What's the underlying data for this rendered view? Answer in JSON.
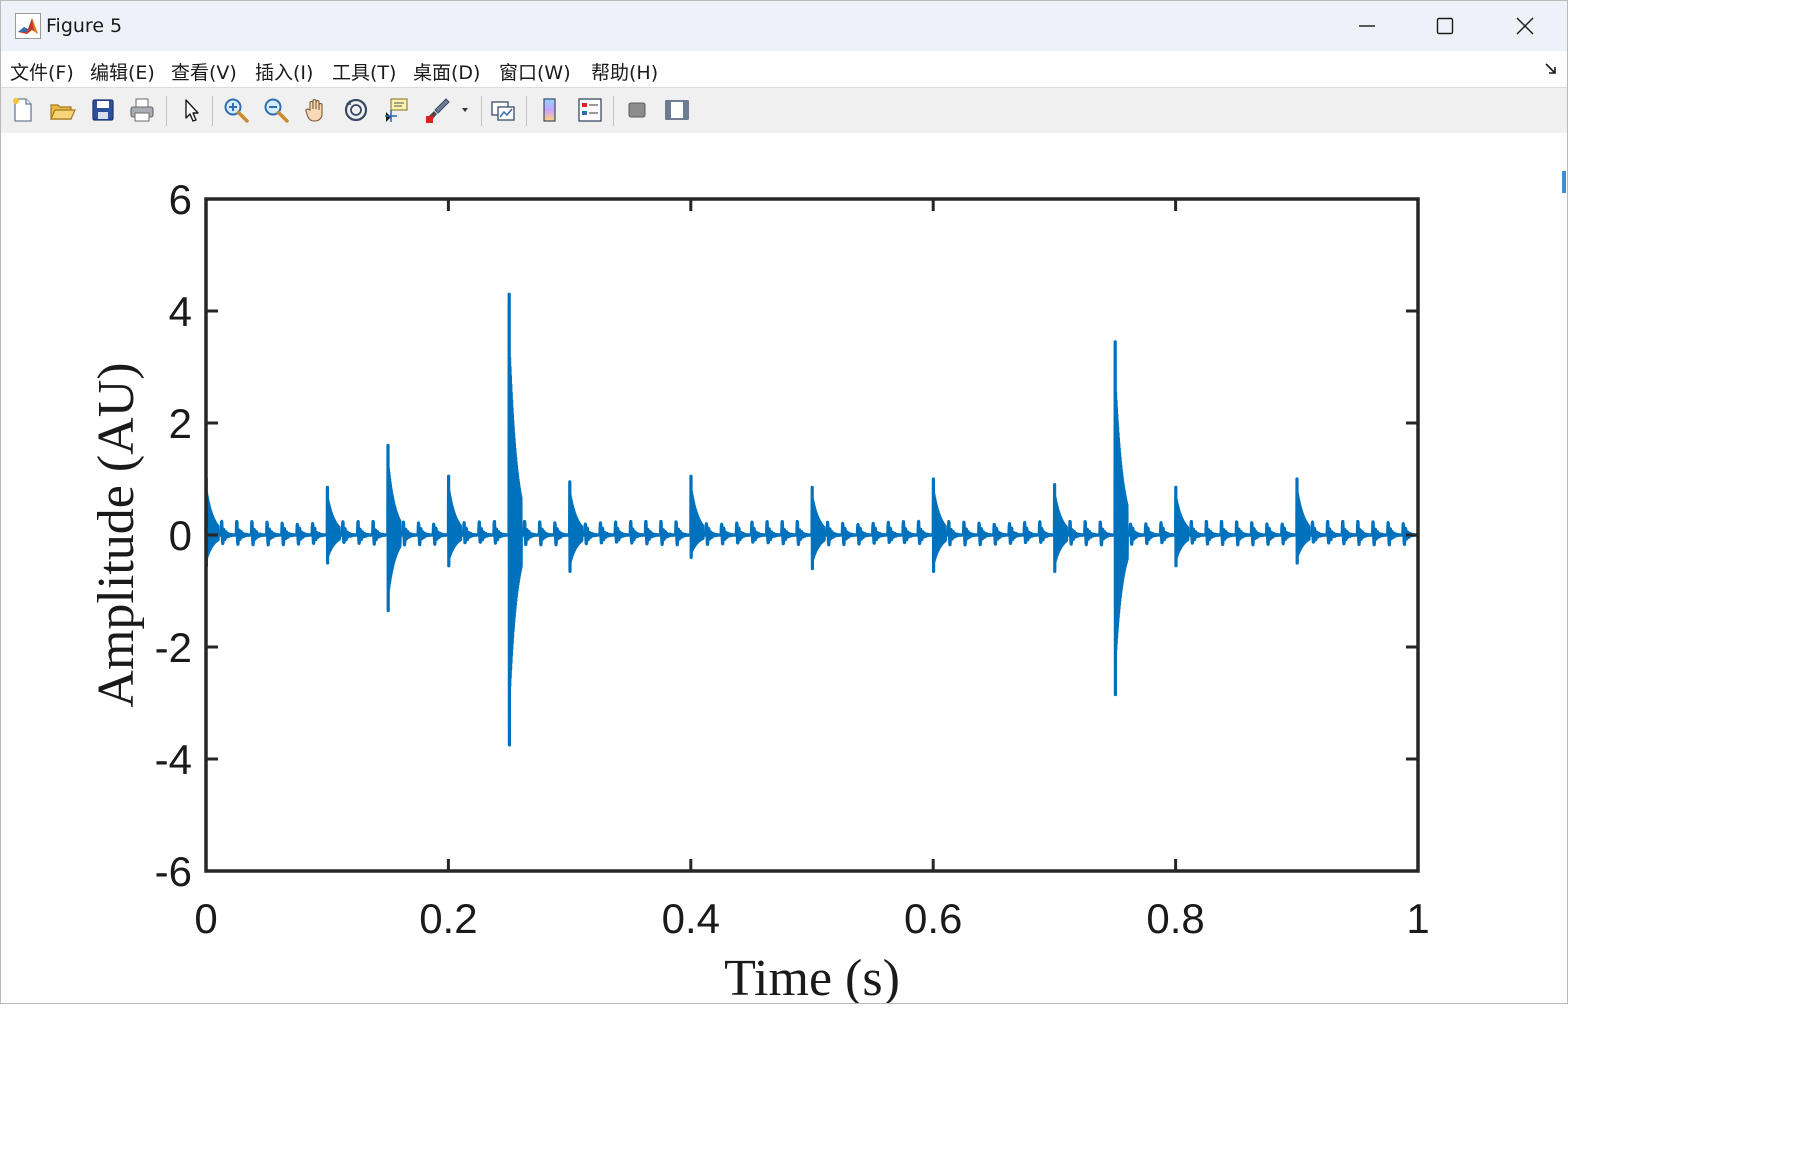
{
  "window": {
    "title": "Figure 5",
    "icon": "matlab-icon",
    "controls": [
      "minimize-icon",
      "maximize-icon",
      "close-icon"
    ]
  },
  "menu": {
    "items": [
      "文件(F)",
      "编辑(E)",
      "查看(V)",
      "插入(I)",
      "工具(T)",
      "桌面(D)",
      "窗口(W)",
      "帮助(H)"
    ]
  },
  "toolbar": {
    "buttons": [
      "new-figure-icon",
      "open-file-icon",
      "save-icon",
      "print-icon",
      "pointer-icon",
      "zoom-in-icon",
      "zoom-out-icon",
      "pan-icon",
      "rotate-3d-icon",
      "data-cursor-icon",
      "brush-icon",
      "link-plot-icon",
      "colorbar-icon",
      "legend-icon",
      "hide-plot-tools-icon",
      "show-plot-tools-icon"
    ]
  },
  "colors": {
    "series": "#0072BD",
    "axes": "#262626",
    "background": "#ffffff"
  },
  "chart_data": {
    "type": "line",
    "title": "",
    "xlabel": "Time (s)",
    "ylabel": "Amplitude (AU)",
    "xlim": [
      0,
      1
    ],
    "ylim": [
      -6,
      6
    ],
    "xticks": [
      0,
      0.2,
      0.4,
      0.6,
      0.8,
      1
    ],
    "xtick_labels": [
      "0",
      "0.2",
      "0.4",
      "0.6",
      "0.8",
      "1"
    ],
    "yticks": [
      -6,
      -4,
      -2,
      0,
      2,
      4,
      6
    ],
    "ytick_labels": [
      "-6",
      "-4",
      "-2",
      "0",
      "2",
      "4",
      "6"
    ],
    "grid": false,
    "box": true,
    "series": [
      {
        "color": "#0072BD",
        "baseline_oscillation": {
          "period_s": 0.0125,
          "peak_max": 0.3,
          "peak_min": -0.3
        },
        "spikes": [
          {
            "t": 0.0,
            "max": 1.0,
            "min": -0.55
          },
          {
            "t": 0.1,
            "max": 0.85,
            "min": -0.5
          },
          {
            "t": 0.15,
            "max": 1.6,
            "min": -1.35
          },
          {
            "t": 0.2,
            "max": 1.05,
            "min": -0.55
          },
          {
            "t": 0.25,
            "max": 4.3,
            "min": -3.75
          },
          {
            "t": 0.3,
            "max": 0.95,
            "min": -0.65
          },
          {
            "t": 0.4,
            "max": 1.05,
            "min": -0.4
          },
          {
            "t": 0.5,
            "max": 0.85,
            "min": -0.6
          },
          {
            "t": 0.6,
            "max": 1.0,
            "min": -0.65
          },
          {
            "t": 0.7,
            "max": 0.9,
            "min": -0.65
          },
          {
            "t": 0.75,
            "max": 3.45,
            "min": -2.85
          },
          {
            "t": 0.8,
            "max": 0.85,
            "min": -0.55
          },
          {
            "t": 0.9,
            "max": 1.0,
            "min": -0.5
          }
        ]
      }
    ]
  }
}
